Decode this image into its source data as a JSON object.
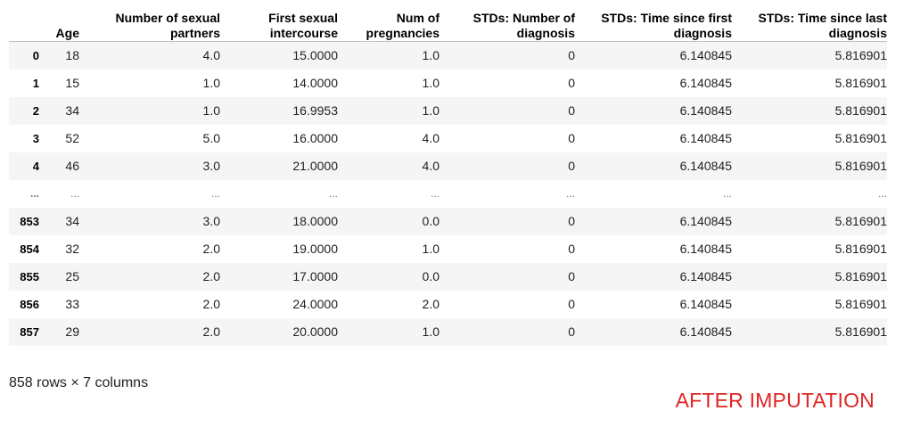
{
  "table": {
    "columns": [
      "",
      "Age",
      "Number of sexual partners",
      "First sexual intercourse",
      "Num of pregnancies",
      "STDs: Number of diagnosis",
      "STDs: Time since first diagnosis",
      "STDs: Time since last diagnosis"
    ],
    "header_lines": [
      [
        "",
        ""
      ],
      [
        "",
        "Age"
      ],
      [
        "Number of sexual",
        "partners"
      ],
      [
        "First sexual",
        "intercourse"
      ],
      [
        "Num of",
        "pregnancies"
      ],
      [
        "STDs: Number of",
        "diagnosis"
      ],
      [
        "STDs: Time since first",
        "diagnosis"
      ],
      [
        "STDs: Time since last",
        "diagnosis"
      ]
    ],
    "rows": [
      [
        "0",
        "18",
        "4.0",
        "15.0000",
        "1.0",
        "0",
        "6.140845",
        "5.816901"
      ],
      [
        "1",
        "15",
        "1.0",
        "14.0000",
        "1.0",
        "0",
        "6.140845",
        "5.816901"
      ],
      [
        "2",
        "34",
        "1.0",
        "16.9953",
        "1.0",
        "0",
        "6.140845",
        "5.816901"
      ],
      [
        "3",
        "52",
        "5.0",
        "16.0000",
        "4.0",
        "0",
        "6.140845",
        "5.816901"
      ],
      [
        "4",
        "46",
        "3.0",
        "21.0000",
        "4.0",
        "0",
        "6.140845",
        "5.816901"
      ],
      [
        "...",
        "...",
        "...",
        "...",
        "...",
        "...",
        "...",
        "..."
      ],
      [
        "853",
        "34",
        "3.0",
        "18.0000",
        "0.0",
        "0",
        "6.140845",
        "5.816901"
      ],
      [
        "854",
        "32",
        "2.0",
        "19.0000",
        "1.0",
        "0",
        "6.140845",
        "5.816901"
      ],
      [
        "855",
        "25",
        "2.0",
        "17.0000",
        "0.0",
        "0",
        "6.140845",
        "5.816901"
      ],
      [
        "856",
        "33",
        "2.0",
        "24.0000",
        "2.0",
        "0",
        "6.140845",
        "5.816901"
      ],
      [
        "857",
        "29",
        "2.0",
        "20.0000",
        "1.0",
        "0",
        "6.140845",
        "5.816901"
      ]
    ]
  },
  "footer": {
    "row_count": "858 rows × 7 columns"
  },
  "annotation": {
    "text": "AFTER IMPUTATION",
    "color": "#e02424"
  }
}
